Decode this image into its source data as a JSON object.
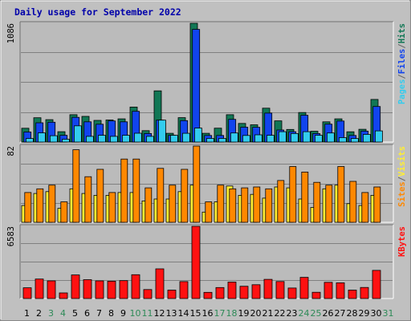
{
  "colors": {
    "background": "#c0c0c0",
    "plot_bg": "#bbbbbb",
    "title": "#0000aa",
    "hits": "#117755",
    "files": "#1144ee",
    "pages": "#33ccee",
    "visits": "#ff8800",
    "sites": "#ffee33",
    "kbytes": "#ff1111",
    "weekend_day": "#2d8a57",
    "weekday": "#000000"
  },
  "chart_data": {
    "type": "bar",
    "title": "Daily usage for September 2022",
    "days": [
      "1",
      "2",
      "3",
      "4",
      "5",
      "6",
      "7",
      "8",
      "9",
      "10",
      "11",
      "12",
      "13",
      "14",
      "15",
      "16",
      "17",
      "18",
      "19",
      "20",
      "21",
      "22",
      "23",
      "24",
      "25",
      "26",
      "27",
      "28",
      "29",
      "30",
      "31"
    ],
    "weekend_days": [
      "3",
      "4",
      "10",
      "11",
      "17",
      "18",
      "24",
      "25",
      "31"
    ],
    "panels": [
      {
        "name": "hits-files-pages",
        "ymax_label": "1086",
        "ymax": 1086,
        "side_labels": [
          {
            "text": "Pages",
            "color": "#33ccee"
          },
          {
            "text": "/",
            "color": "#666666"
          },
          {
            "text": "Files",
            "color": "#1144ee"
          },
          {
            "text": "/",
            "color": "#666666"
          },
          {
            "text": "Hits",
            "color": "#117755"
          }
        ],
        "series": [
          {
            "name": "Hits",
            "color": "#117755",
            "values": [
              126,
              222,
              205,
              95,
              250,
              235,
              198,
              202,
              212,
              320,
              104,
              468,
              80,
              223,
              1086,
              80,
              127,
              250,
              170,
              158,
              310,
              194,
              115,
              270,
              99,
              185,
              212,
              94,
              117,
              390,
              0
            ]
          },
          {
            "name": "Files",
            "color": "#1144ee",
            "values": [
              92,
              176,
              181,
              62,
              226,
              185,
              163,
              193,
              185,
              281,
              78,
              200,
              62,
              196,
              1030,
              60,
              60,
              208,
              136,
              135,
              265,
              110,
              95,
              245,
              78,
              164,
              192,
              60,
              100,
              325,
              0
            ]
          },
          {
            "name": "Pages",
            "color": "#33ccee",
            "values": [
              32,
              84,
              58,
              26,
              148,
              52,
              62,
              52,
              62,
              81,
              52,
              200,
              62,
              80,
              128,
              33,
              33,
              83,
              60,
              66,
              62,
              95,
              78,
              95,
              62,
              83,
              40,
              32,
              70,
              102,
              0
            ]
          }
        ]
      },
      {
        "name": "visits-sites",
        "ymax_label": "82",
        "ymax": 82,
        "side_labels": [
          {
            "text": "Sites",
            "color": "#ff8800"
          },
          {
            "text": "/",
            "color": "#666666"
          },
          {
            "text": "Visits",
            "color": "#ffee33"
          }
        ],
        "series": [
          {
            "name": "Visits",
            "color": "#ffee33",
            "values": [
              18,
              31,
              33,
              15,
              36,
              31,
              29,
              29,
              32,
              32,
              23,
              25,
              25,
              33,
              40,
              11,
              22,
              39,
              29,
              30,
              26,
              38,
              37,
              25,
              16,
              36,
              40,
              20,
              18,
              29,
              0
            ]
          },
          {
            "name": "Sites",
            "color": "#ff8800",
            "values": [
              32,
              36,
              40,
              22,
              78,
              49,
              57,
              32,
              68,
              68,
              37,
              58,
              40,
              57,
              82,
              22,
              40,
              36,
              37,
              38,
              36,
              45,
              60,
              54,
              43,
              40,
              60,
              44,
              32,
              38,
              0
            ]
          }
        ]
      },
      {
        "name": "kbytes",
        "ymax_label": "6583",
        "ymax": 6583,
        "side_labels": [
          {
            "text": "KBytes",
            "color": "#ff1111"
          }
        ],
        "series": [
          {
            "name": "KBytes",
            "color": "#ff1111",
            "values": [
              980,
              1780,
              1610,
              510,
              2150,
              1720,
              1610,
              1580,
              1630,
              2170,
              820,
              2710,
              770,
              1540,
              6583,
              560,
              1000,
              1500,
              1120,
              1260,
              1750,
              1550,
              960,
              1930,
              570,
              1480,
              1430,
              770,
              1010,
              2570,
              0
            ]
          }
        ]
      }
    ]
  }
}
